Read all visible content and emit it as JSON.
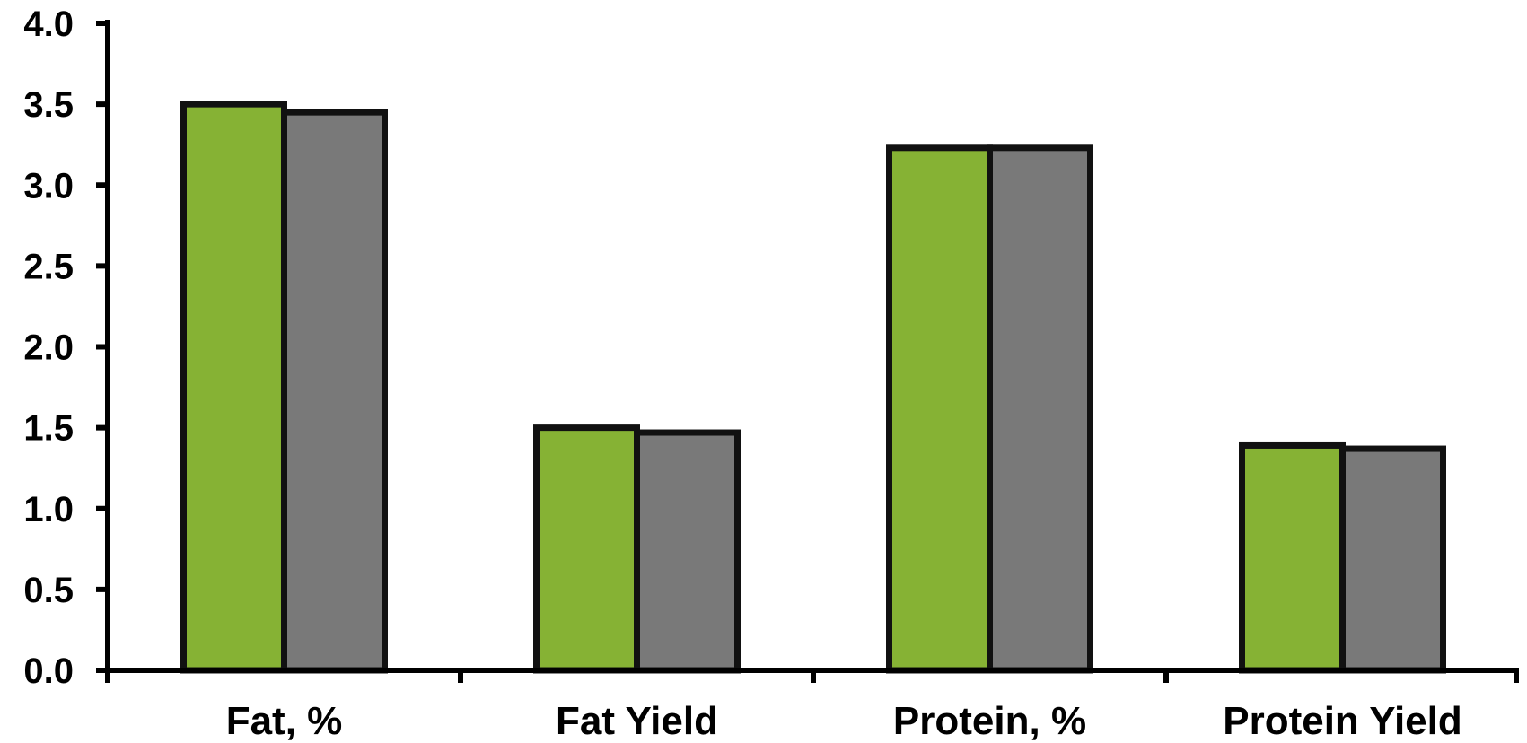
{
  "chart_data": {
    "type": "bar",
    "categories": [
      "Fat, %",
      "Fat Yield",
      "Protein, %",
      "Protein Yield"
    ],
    "series": [
      {
        "values": [
          3.5,
          1.5,
          3.23,
          1.39
        ],
        "color": "#86b234"
      },
      {
        "values": [
          3.45,
          1.47,
          3.23,
          1.37
        ],
        "color": "#797979"
      }
    ],
    "ylim": [
      0,
      4.0
    ],
    "yticks": [
      "0.0",
      "0.5",
      "1.0",
      "1.5",
      "2.0",
      "2.5",
      "3.0",
      "3.5",
      "4.0"
    ],
    "grid": false,
    "legend": "none",
    "xlabel": "",
    "ylabel": "",
    "title": ""
  }
}
